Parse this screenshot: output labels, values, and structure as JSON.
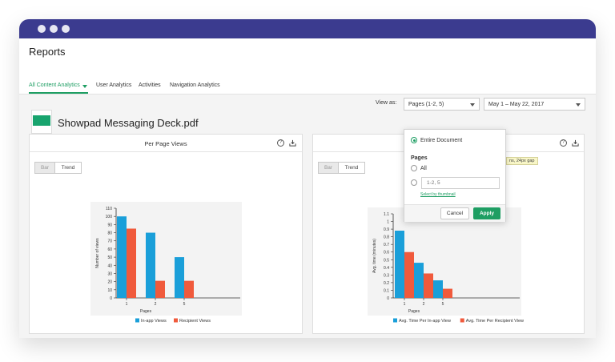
{
  "header": {
    "title": "Reports",
    "tabs": [
      {
        "label": "All Content Analytics",
        "active": true
      },
      {
        "label": "User Analytics",
        "active": false
      },
      {
        "label": "Activities",
        "active": false
      },
      {
        "label": "Navigation Analytics",
        "active": false
      }
    ]
  },
  "document": {
    "title": "Showpad Messaging Deck.pdf"
  },
  "view_as": {
    "label": "View as:",
    "pages_value": "Pages (1-2, 5)",
    "date_value": "May 1 – May 22, 2017"
  },
  "popover": {
    "entire_document": "Entire Document",
    "pages_heading": "Pages",
    "all_label": "All",
    "pages_placeholder": "1-2, 5",
    "select_link": "Select by thumbnail",
    "cancel_label": "Cancel",
    "apply_label": "Apply",
    "tooltip_fragment": "ns, 24px gap"
  },
  "colors": {
    "accent": "#1e9e63",
    "inapp": "#1a9fd9",
    "recipient": "#f05a3c",
    "titlebar": "#3b3b8f"
  },
  "left_panel": {
    "title": "Per Page Views",
    "toggle_bar": "Bar",
    "toggle_trend": "Trend",
    "help_glyph": "?"
  },
  "right_panel": {
    "toggle_bar": "Bar",
    "toggle_trend": "Trend",
    "help_glyph": "?"
  },
  "chart_data": [
    {
      "type": "bar",
      "title": "Per Page Views",
      "xlabel": "Pages",
      "ylabel": "Number of views",
      "categories": [
        "1",
        "2",
        "5"
      ],
      "ylim": [
        0,
        110
      ],
      "yticks": [
        0,
        10,
        20,
        30,
        40,
        50,
        60,
        70,
        80,
        90,
        100,
        110
      ],
      "series": [
        {
          "name": "In-app Views",
          "values": [
            100,
            80,
            50
          ]
        },
        {
          "name": "Recipient Views",
          "values": [
            85,
            21,
            21
          ]
        }
      ],
      "legend": "bottom"
    },
    {
      "type": "bar",
      "xlabel": "Pages",
      "ylabel": "Avg. time (minutes)",
      "categories": [
        "1",
        "2",
        "5"
      ],
      "ylim": [
        0,
        1.1
      ],
      "yticks": [
        0,
        0.1,
        0.2,
        0.3,
        0.4,
        0.5,
        0.6,
        0.7,
        0.8,
        0.9,
        1,
        1.1
      ],
      "series": [
        {
          "name": "Avg. Time Per In-app View",
          "values": [
            0.88,
            0.46,
            0.23
          ]
        },
        {
          "name": "Avg. Time Per Recipient View",
          "values": [
            0.6,
            0.32,
            0.12
          ]
        }
      ],
      "legend": "bottom"
    }
  ]
}
